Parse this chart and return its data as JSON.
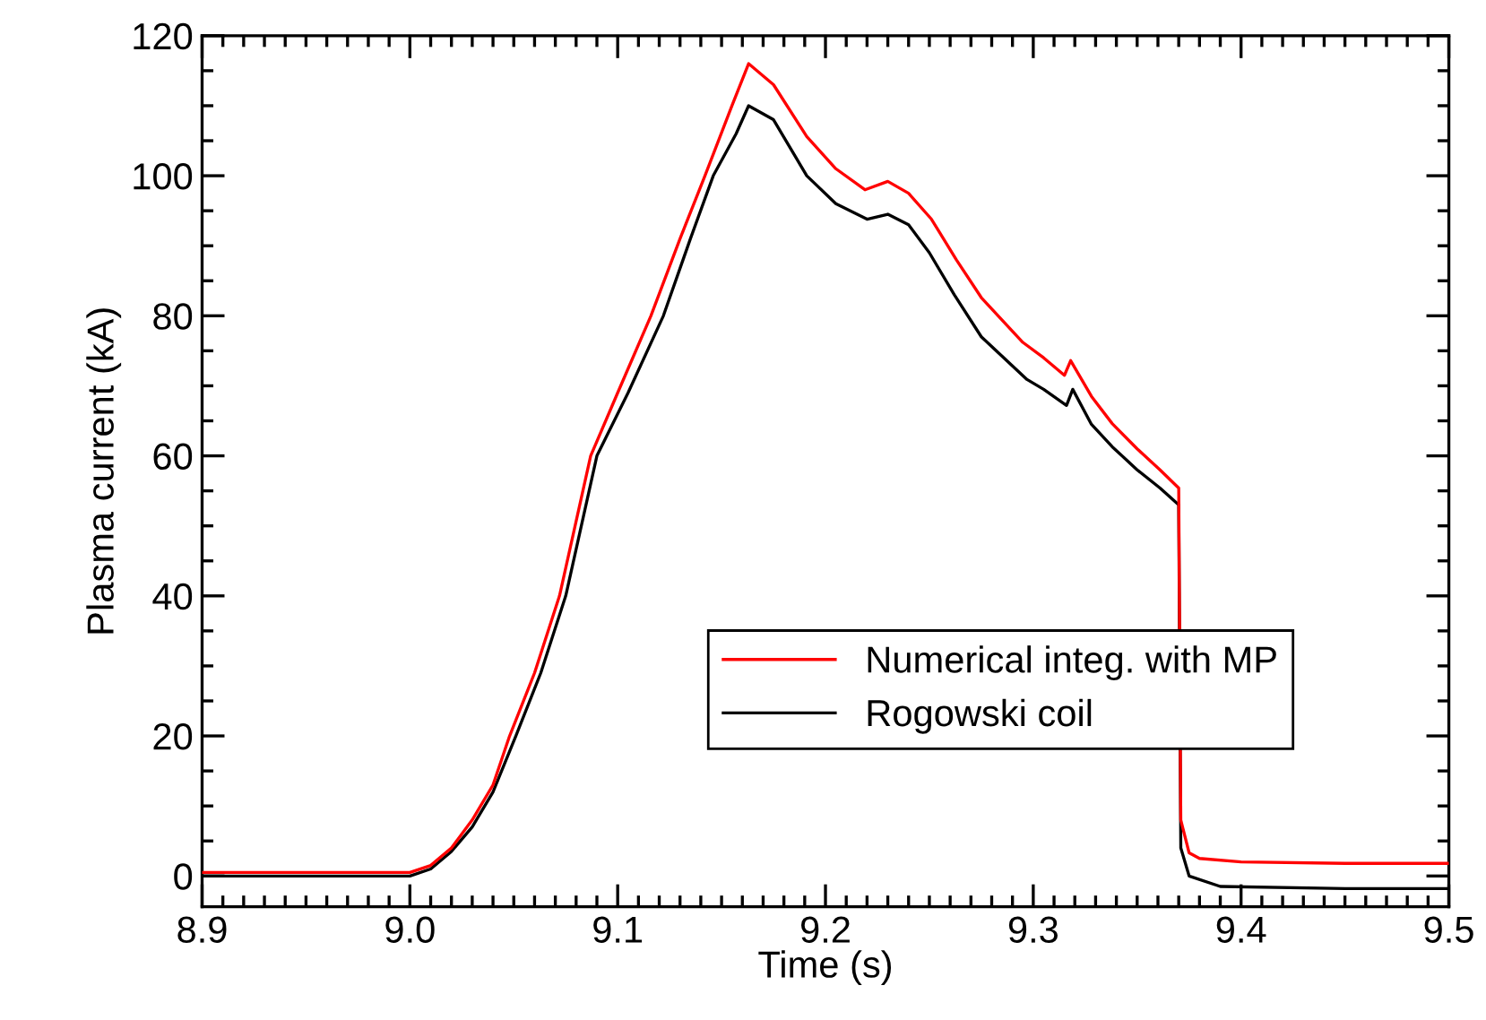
{
  "chart_data": {
    "type": "line",
    "xlabel": "Time (s)",
    "ylabel": "Plasma current (kA)",
    "xlim": [
      8.9,
      9.5
    ],
    "ylim": [
      -4.4,
      120
    ],
    "xticks": [
      {
        "value": 8.9,
        "label": "8.9"
      },
      {
        "value": 9.0,
        "label": "9.0"
      },
      {
        "value": 9.1,
        "label": "9.1"
      },
      {
        "value": 9.2,
        "label": "9.2"
      },
      {
        "value": 9.3,
        "label": "9.3"
      },
      {
        "value": 9.4,
        "label": "9.4"
      },
      {
        "value": 9.5,
        "label": "9.5"
      }
    ],
    "yticks": [
      0,
      20,
      40,
      60,
      80,
      100,
      120
    ],
    "legend": "lower right",
    "grid": false,
    "marker": "none",
    "line_style": "solid",
    "series": [
      {
        "name": "Numerical integ. with MP",
        "color": "#ff0000",
        "x": [
          8.9,
          8.95,
          9.0,
          9.01,
          9.02,
          9.03,
          9.04,
          9.048,
          9.06,
          9.072,
          9.087,
          9.1,
          9.116,
          9.13,
          9.142,
          9.155,
          9.163,
          9.175,
          9.191,
          9.205,
          9.219,
          9.23,
          9.24,
          9.251,
          9.263,
          9.275,
          9.295,
          9.305,
          9.315,
          9.318,
          9.328,
          9.338,
          9.35,
          9.361,
          9.37,
          9.371,
          9.375,
          9.38,
          9.4,
          9.45,
          9.5
        ],
        "values": [
          0.5,
          0.5,
          0.5,
          1.5,
          4,
          8,
          13,
          20,
          29,
          40,
          60,
          69,
          80,
          91,
          100,
          110,
          116,
          113,
          105.6,
          101,
          98,
          99.2,
          97.5,
          93.8,
          88,
          82.6,
          76.2,
          74,
          71.5,
          73.6,
          68.5,
          64.6,
          61,
          58,
          55.4,
          8,
          3.3,
          2.5,
          2,
          1.8,
          1.8
        ]
      },
      {
        "name": "Rogowski coil",
        "color": "#000000",
        "x": [
          8.9,
          8.95,
          9.0,
          9.01,
          9.02,
          9.03,
          9.04,
          9.051,
          9.063,
          9.075,
          9.09,
          9.105,
          9.122,
          9.135,
          9.146,
          9.157,
          9.163,
          9.175,
          9.191,
          9.205,
          9.22,
          9.23,
          9.24,
          9.25,
          9.262,
          9.275,
          9.297,
          9.305,
          9.316,
          9.319,
          9.328,
          9.338,
          9.35,
          9.361,
          9.37,
          9.371,
          9.375,
          9.39,
          9.45,
          9.5
        ],
        "values": [
          0,
          0,
          0,
          1,
          3.5,
          7,
          12,
          20,
          29,
          40,
          60,
          69,
          80,
          91,
          100,
          106,
          110,
          108,
          100,
          96,
          93.8,
          94.5,
          93,
          89,
          83,
          77,
          70.9,
          69.5,
          67.2,
          69.5,
          64.5,
          61.3,
          58,
          55.4,
          53,
          4,
          0,
          -1.5,
          -1.8,
          -1.8
        ]
      }
    ]
  }
}
